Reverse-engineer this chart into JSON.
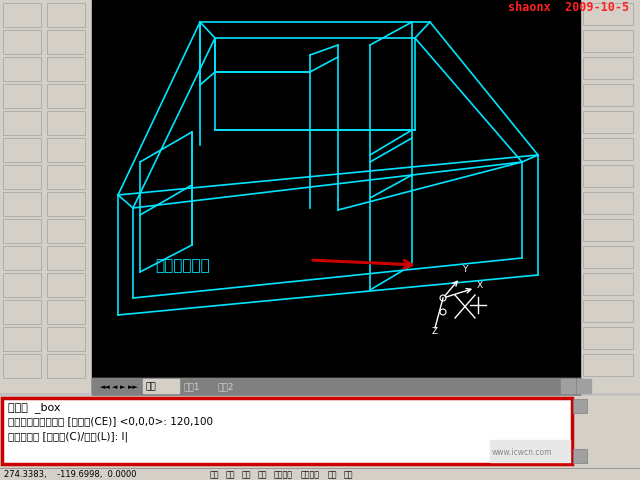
{
  "bg_color": "#000000",
  "toolbar_bg": "#d4d0c8",
  "main_bg": "#000000",
  "cyan_color": "#00e5ff",
  "white_color": "#ffffff",
  "red_color": "#cc0000",
  "title_text": "shaonx  2009-10-5",
  "title_color": "#ff2020",
  "label_text": "长方体的角点",
  "label_color": "#00e5ff",
  "cmd_line1": "命令：  _box",
  "cmd_line2": "指定长方体的角点或 [中心点(CE)] <0,0,0>: 120,100",
  "cmd_line3": "指定角点或 [立方体(C)/长度(L)]: l|",
  "cmd_bg": "#ffffff",
  "cmd_text_color": "#000000",
  "bottom_bar_text": "274.3383,    -119.6998,  0.0000",
  "bottom_status": "捕捉  削格  正交  极轴  对象捕捉  对象追踪  线宽  模型",
  "tab_model": "模型",
  "tab_layout1": "布屈1",
  "tab_layout2": "布屈2",
  "watermark": "www.icwcn.com"
}
